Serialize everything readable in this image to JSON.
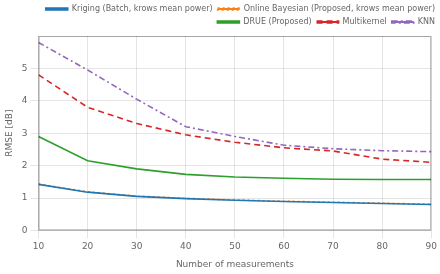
{
  "chart_data": {
    "type": "line",
    "x": [
      10,
      20,
      30,
      40,
      50,
      60,
      70,
      80,
      90
    ],
    "series": [
      {
        "name": "Kriging (Batch, krows mean power)",
        "color": "#1f77b4",
        "line_style": "solid",
        "values": [
          1.42,
          1.18,
          1.05,
          0.98,
          0.93,
          0.89,
          0.86,
          0.83,
          0.8
        ]
      },
      {
        "name": "Online Bayesian (Proposed, krows mean power)",
        "color": "#ff7f0e",
        "line_style": "dotted",
        "values": [
          1.43,
          1.19,
          1.06,
          0.99,
          0.94,
          0.9,
          0.87,
          0.84,
          0.81
        ]
      },
      {
        "name": "DRUE (Proposed)",
        "color": "#2ca02c",
        "line_style": "solid",
        "values": [
          2.9,
          2.15,
          1.9,
          1.73,
          1.65,
          1.61,
          1.58,
          1.57,
          1.57
        ]
      },
      {
        "name": "Multikernel",
        "color": "#d62728",
        "line_style": "dashed",
        "values": [
          4.8,
          3.8,
          3.3,
          2.95,
          2.72,
          2.55,
          2.45,
          2.2,
          2.1
        ]
      },
      {
        "name": "KNN",
        "color": "#9467bd",
        "line_style": "dashdot",
        "values": [
          5.8,
          4.95,
          4.05,
          3.2,
          2.9,
          2.63,
          2.52,
          2.46,
          2.43
        ]
      }
    ],
    "xlabel": "Number of measurements",
    "ylabel": "RMSE [dB]",
    "xlim": [
      10,
      90
    ],
    "ylim": [
      0,
      6
    ],
    "xticks": [
      10,
      20,
      30,
      40,
      50,
      60,
      70,
      80,
      90
    ],
    "yticks": [
      0,
      1,
      2,
      3,
      4,
      5
    ],
    "grid": true,
    "legend": "upper right"
  }
}
